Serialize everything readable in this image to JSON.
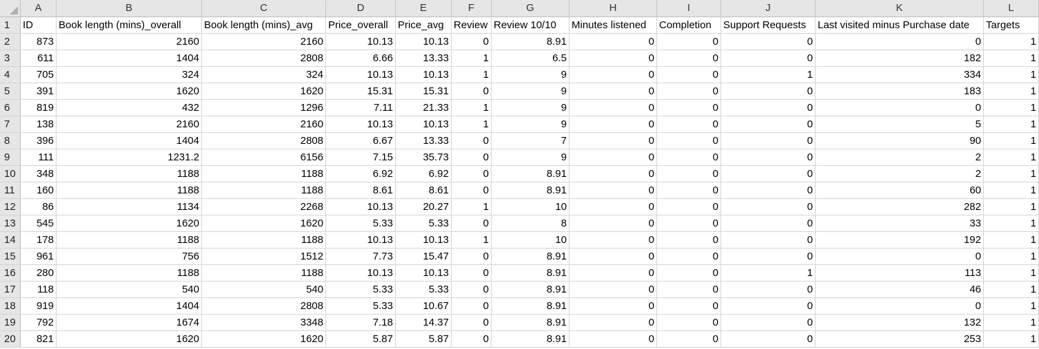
{
  "sheet": {
    "columns": [
      "A",
      "B",
      "C",
      "D",
      "E",
      "F",
      "G",
      "H",
      "I",
      "J",
      "K",
      "L"
    ],
    "row_numbers": [
      "1",
      "2",
      "3",
      "4",
      "5",
      "6",
      "7",
      "8",
      "9",
      "10",
      "11",
      "12",
      "13",
      "14",
      "15",
      "16",
      "17",
      "18",
      "19",
      "20"
    ],
    "header": [
      "ID",
      "Book length (mins)_overall",
      "Book length (mins)_avg",
      "Price_overall",
      "Price_avg",
      "Review",
      "Review 10/10",
      "Minutes listened",
      "Completion",
      "Support Requests",
      "Last visited minus Purchase date",
      "Targets"
    ],
    "rows": [
      [
        "873",
        "2160",
        "2160",
        "10.13",
        "10.13",
        "0",
        "8.91",
        "0",
        "0",
        "0",
        "0",
        "1"
      ],
      [
        "611",
        "1404",
        "2808",
        "6.66",
        "13.33",
        "1",
        "6.5",
        "0",
        "0",
        "0",
        "182",
        "1"
      ],
      [
        "705",
        "324",
        "324",
        "10.13",
        "10.13",
        "1",
        "9",
        "0",
        "0",
        "1",
        "334",
        "1"
      ],
      [
        "391",
        "1620",
        "1620",
        "15.31",
        "15.31",
        "0",
        "9",
        "0",
        "0",
        "0",
        "183",
        "1"
      ],
      [
        "819",
        "432",
        "1296",
        "7.11",
        "21.33",
        "1",
        "9",
        "0",
        "0",
        "0",
        "0",
        "1"
      ],
      [
        "138",
        "2160",
        "2160",
        "10.13",
        "10.13",
        "1",
        "9",
        "0",
        "0",
        "0",
        "5",
        "1"
      ],
      [
        "396",
        "1404",
        "2808",
        "6.67",
        "13.33",
        "0",
        "7",
        "0",
        "0",
        "0",
        "90",
        "1"
      ],
      [
        "111",
        "1231.2",
        "6156",
        "7.15",
        "35.73",
        "0",
        "9",
        "0",
        "0",
        "0",
        "2",
        "1"
      ],
      [
        "348",
        "1188",
        "1188",
        "6.92",
        "6.92",
        "0",
        "8.91",
        "0",
        "0",
        "0",
        "2",
        "1"
      ],
      [
        "160",
        "1188",
        "1188",
        "8.61",
        "8.61",
        "0",
        "8.91",
        "0",
        "0",
        "0",
        "60",
        "1"
      ],
      [
        "86",
        "1134",
        "2268",
        "10.13",
        "20.27",
        "1",
        "10",
        "0",
        "0",
        "0",
        "282",
        "1"
      ],
      [
        "545",
        "1620",
        "1620",
        "5.33",
        "5.33",
        "0",
        "8",
        "0",
        "0",
        "0",
        "33",
        "1"
      ],
      [
        "178",
        "1188",
        "1188",
        "10.13",
        "10.13",
        "1",
        "10",
        "0",
        "0",
        "0",
        "192",
        "1"
      ],
      [
        "961",
        "756",
        "1512",
        "7.73",
        "15.47",
        "0",
        "8.91",
        "0",
        "0",
        "0",
        "0",
        "1"
      ],
      [
        "280",
        "1188",
        "1188",
        "10.13",
        "10.13",
        "0",
        "8.91",
        "0",
        "0",
        "1",
        "113",
        "1"
      ],
      [
        "118",
        "540",
        "540",
        "5.33",
        "5.33",
        "0",
        "8.91",
        "0",
        "0",
        "0",
        "46",
        "1"
      ],
      [
        "919",
        "1404",
        "2808",
        "5.33",
        "10.67",
        "0",
        "8.91",
        "0",
        "0",
        "0",
        "0",
        "1"
      ],
      [
        "792",
        "1674",
        "3348",
        "7.18",
        "14.37",
        "0",
        "8.91",
        "0",
        "0",
        "0",
        "132",
        "1"
      ],
      [
        "821",
        "1620",
        "1620",
        "5.87",
        "5.87",
        "0",
        "8.91",
        "0",
        "0",
        "0",
        "253",
        "1"
      ]
    ]
  }
}
